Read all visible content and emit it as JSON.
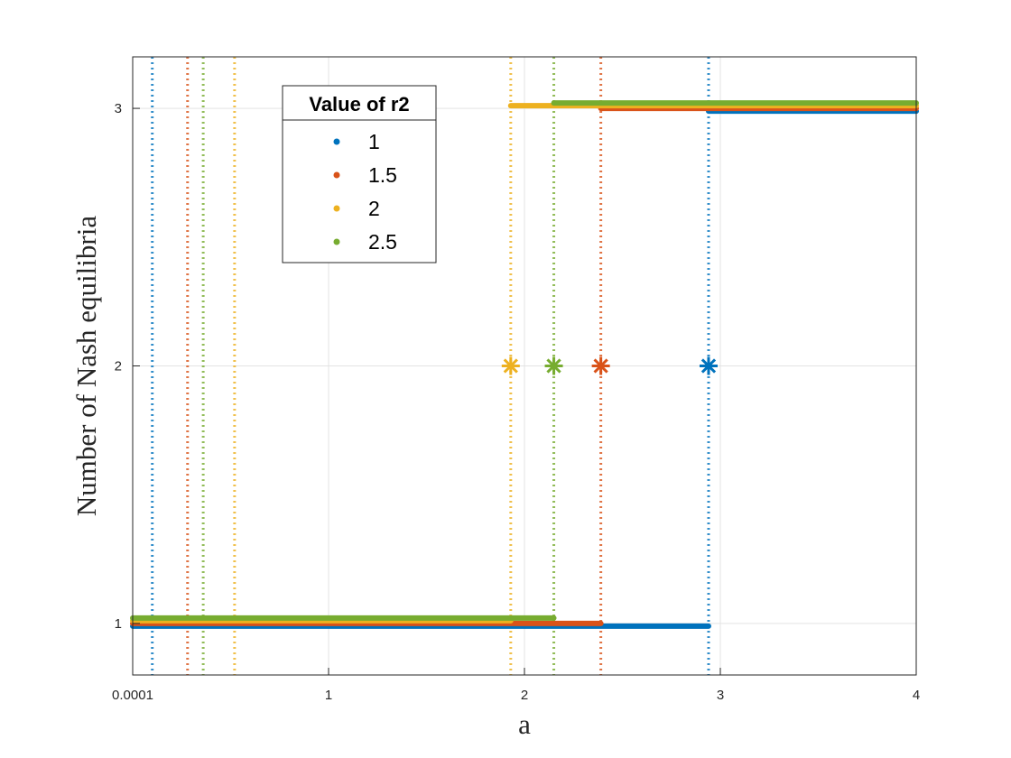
{
  "chart_data": {
    "type": "line",
    "xlabel": "a",
    "ylabel": "Number of Nash equilibria",
    "xlim": [
      0,
      4
    ],
    "ylim": [
      0.8,
      3.2
    ],
    "x_ticks": [
      {
        "value": 0,
        "label": "0.0001"
      },
      {
        "value": 1,
        "label": "1"
      },
      {
        "value": 2,
        "label": "2"
      },
      {
        "value": 3,
        "label": "3"
      },
      {
        "value": 4,
        "label": "4"
      }
    ],
    "y_ticks": [
      {
        "value": 1,
        "label": "1"
      },
      {
        "value": 2,
        "label": "2"
      },
      {
        "value": 3,
        "label": "3"
      }
    ],
    "grid": true,
    "legend": {
      "title": "Value of r2",
      "placement": "upper-left inside"
    },
    "series": [
      {
        "name": "1",
        "color": "#0072BD",
        "segments": [
          {
            "x": [
              0.0001,
              2.94
            ],
            "y": 1
          },
          {
            "x": [
              2.94,
              4.0
            ],
            "y": 3
          }
        ],
        "star": {
          "x": 2.94,
          "y": 2
        },
        "vlines": [
          0.1,
          2.94
        ]
      },
      {
        "name": "1.5",
        "color": "#D95319",
        "segments": [
          {
            "x": [
              0.0001,
              2.39
            ],
            "y": 1
          },
          {
            "x": [
              2.39,
              4.0
            ],
            "y": 3
          }
        ],
        "star": {
          "x": 2.39,
          "y": 2
        },
        "vlines": [
          0.28,
          2.39
        ]
      },
      {
        "name": "2",
        "color": "#EDB120",
        "segments": [
          {
            "x": [
              0.0001,
              1.93
            ],
            "y": 1
          },
          {
            "x": [
              1.93,
              4.0
            ],
            "y": 3
          }
        ],
        "star": {
          "x": 1.93,
          "y": 2
        },
        "vlines": [
          0.52,
          1.93
        ]
      },
      {
        "name": "2.5",
        "color": "#77AC30",
        "segments": [
          {
            "x": [
              0.0001,
              2.15
            ],
            "y": 1
          },
          {
            "x": [
              2.15,
              4.0
            ],
            "y": 3
          }
        ],
        "star": {
          "x": 2.15,
          "y": 2
        },
        "vlines": [
          0.36,
          2.15
        ]
      }
    ]
  }
}
